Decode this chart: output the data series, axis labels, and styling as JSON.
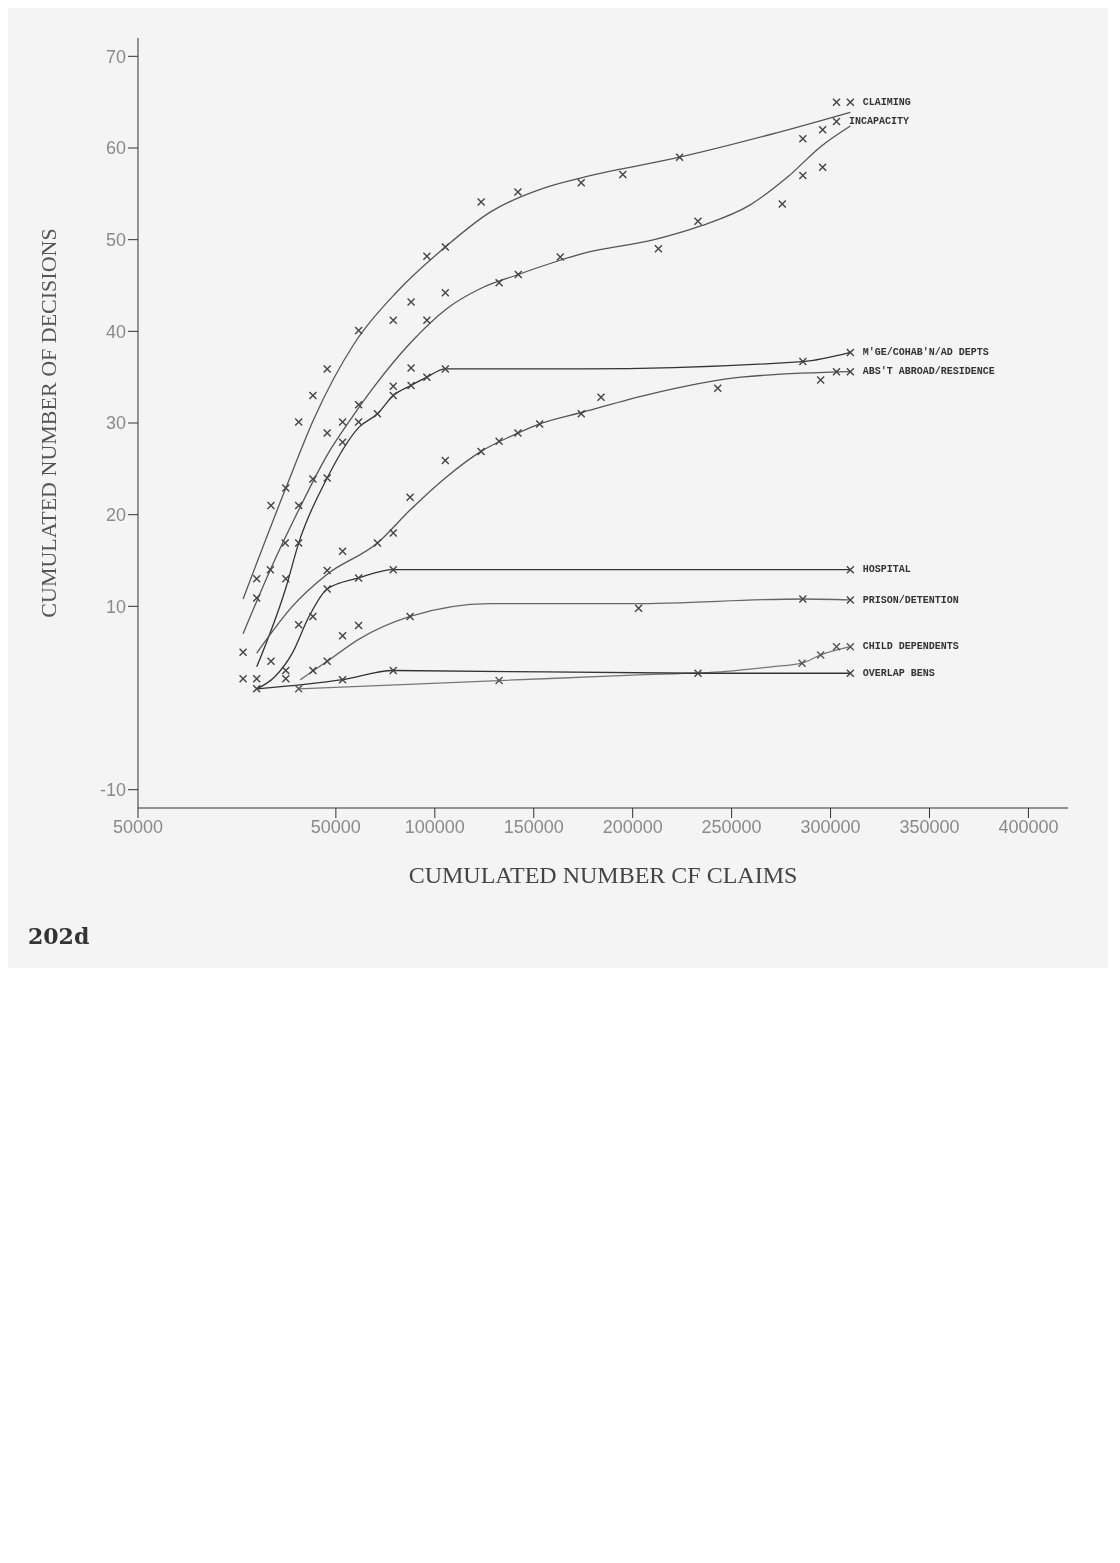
{
  "chart_data": {
    "type": "scatter",
    "xlabel": "CUMULATED NUMBER CF CLAIMS",
    "ylabel": "CUMULATED NUMBER OF DECISIONS",
    "annotations": [
      "202d"
    ],
    "xlim": [
      -50000,
      420000
    ],
    "xticks": [
      {
        "value": -50000,
        "label": "50000"
      },
      50000,
      100000,
      150000,
      200000,
      250000,
      300000,
      350000,
      400000
    ],
    "ylim": [
      -12,
      72
    ],
    "yticks": [
      -10,
      10,
      20,
      30,
      40,
      50,
      60,
      70
    ],
    "grid": false,
    "legend": false,
    "marker": "cross",
    "series": [
      {
        "name": "CLAIMING",
        "type": "scatter",
        "color": "#444444",
        "x": [
          310000,
          303000,
          296000,
          286000,
          223700,
          195000,
          174000,
          142000,
          123400,
          105300,
          96000,
          88000,
          79000,
          61500,
          45600,
          38400,
          31200,
          24700,
          17200,
          10000,
          10000
        ],
        "values": [
          65,
          65,
          62,
          61,
          59,
          57.1,
          56.2,
          55.2,
          54.1,
          49.2,
          48.2,
          43.2,
          41.2,
          40.1,
          35.9,
          33,
          30.1,
          22.9,
          21,
          13,
          10.9
        ]
      },
      {
        "type": "line",
        "marker": "none",
        "color": "#555555",
        "x": [
          3100,
          24700,
          39000,
          59400,
          81250,
          105300,
          128000,
          154700,
          175000,
          223700,
          270000,
          310000
        ],
        "values": [
          10.8,
          22.9,
          30.5,
          38.7,
          44.4,
          49.2,
          53,
          55.6,
          56.8,
          59,
          61.5,
          63.9
        ]
      },
      {
        "name": "INCAPACITY",
        "type": "scatter",
        "color": "#444444",
        "x": [
          303000,
          296000,
          286000,
          275600,
          233000,
          213000,
          163400,
          142200,
          132500,
          105300,
          96000,
          88000,
          79000,
          61500,
          53400,
          45600,
          38400,
          31200,
          24400,
          16900
        ],
        "values": [
          62.9,
          57.9,
          57,
          53.9,
          52,
          49,
          48.1,
          46.2,
          45.3,
          44.2,
          41.2,
          36,
          34,
          32,
          30.1,
          28.9,
          23.9,
          21,
          16.9,
          14
        ]
      },
      {
        "type": "line",
        "marker": "none",
        "color": "#555555",
        "x": [
          3100,
          16900,
          31200,
          45600,
          57800,
          68750,
          87500,
          106200,
          123400,
          142200,
          162500,
          175000,
          210900,
          234400,
          259400,
          278100,
          295300,
          310000
        ],
        "values": [
          7,
          14,
          20.5,
          26.5,
          30.5,
          33.8,
          38.7,
          42.5,
          44.7,
          46.2,
          47.7,
          48.5,
          50,
          51.5,
          53.8,
          56.8,
          60.2,
          62.4
        ]
      },
      {
        "name": "M'GE/COHAB'N/AD DEPTS",
        "type": "scatter",
        "color": "#444444",
        "x": [
          310000,
          286000,
          105300,
          96000,
          88000,
          79000,
          71000,
          61500,
          53400,
          45600,
          31200,
          24700
        ],
        "values": [
          37.7,
          36.7,
          35.9,
          35,
          34.1,
          33,
          31,
          30.1,
          27.9,
          24,
          16.9,
          13
        ]
      },
      {
        "type": "line",
        "marker": "none",
        "color": "#333333",
        "x": [
          10000,
          24700,
          31200,
          45600,
          61500,
          71000,
          79000,
          88000,
          96000,
          105300,
          175000,
          286000,
          310000
        ],
        "values": [
          3.4,
          12,
          16.9,
          24,
          29.5,
          31,
          33,
          34.1,
          35,
          35.9,
          35.9,
          36.7,
          37.7
        ]
      },
      {
        "name": "ABS'T ABROAD/RESIDENCE",
        "type": "scatter",
        "color": "#444444",
        "x": [
          310000,
          303000,
          295000,
          243000,
          184000,
          174000,
          153000,
          142000,
          132500,
          123400,
          105300,
          87500,
          79000,
          71000,
          53400,
          45600,
          3100
        ],
        "values": [
          35.6,
          35.6,
          34.7,
          33.8,
          32.8,
          31,
          29.9,
          28.9,
          28,
          26.9,
          25.9,
          21.9,
          18,
          16.9,
          16,
          13.9,
          5
        ]
      },
      {
        "type": "line",
        "marker": "none",
        "color": "#555555",
        "x": [
          10000,
          28000,
          45600,
          71000,
          87500,
          105300,
          123400,
          142000,
          153000,
          175000,
          207800,
          254700,
          310000
        ],
        "values": [
          4.9,
          10,
          13.5,
          16.9,
          20.5,
          24,
          26.9,
          28.9,
          29.9,
          31.2,
          33.1,
          35,
          35.6
        ]
      },
      {
        "name": "HOSPITAL",
        "type": "scatter",
        "color": "#444444",
        "x": [
          310000,
          79000,
          61500,
          45600,
          38400,
          31200,
          24700,
          10000
        ],
        "values": [
          14,
          14,
          13.1,
          11.9,
          8.9,
          8,
          3,
          1
        ]
      },
      {
        "type": "line",
        "marker": "none",
        "color": "#333333",
        "x": [
          10000,
          19000,
          28000,
          36000,
          45600,
          61500,
          79000,
          310000
        ],
        "values": [
          1,
          2.3,
          4.9,
          8.7,
          11.9,
          13.1,
          14,
          14
        ]
      },
      {
        "name": "PRISON/DETENTION",
        "type": "scatter",
        "color": "#444444",
        "x": [
          310000,
          286000,
          203000,
          87500,
          61500,
          53400,
          45600,
          38400,
          17200,
          10000,
          3100
        ],
        "values": [
          10.7,
          10.8,
          9.8,
          8.9,
          7.9,
          6.8,
          4,
          3,
          4,
          2.1,
          2.1
        ]
      },
      {
        "type": "line",
        "marker": "none",
        "color": "#666666",
        "x": [
          32000,
          45600,
          61500,
          87500,
          128000,
          200000,
          286000,
          310000
        ],
        "values": [
          2,
          4,
          6.4,
          8.9,
          10.3,
          10.3,
          10.8,
          10.7
        ]
      },
      {
        "name": "CHILD DEPENDENTS",
        "type": "scatter",
        "color": "#555555",
        "x": [
          310000,
          303000,
          295000,
          285600,
          132500,
          31200
        ],
        "values": [
          5.6,
          5.6,
          4.7,
          3.8,
          1.9,
          1
        ]
      },
      {
        "type": "line",
        "marker": "none",
        "color": "#777777",
        "x": [
          31200,
          132500,
          200000,
          247000,
          270000,
          285600,
          295000,
          310000
        ],
        "values": [
          1,
          1.9,
          2.5,
          2.9,
          3.4,
          3.8,
          4.7,
          5.6
        ]
      },
      {
        "name": "OVERLAP BENS",
        "type": "scatter",
        "color": "#444444",
        "x": [
          310000,
          233000,
          79000,
          53400,
          24700
        ],
        "values": [
          2.7,
          2.7,
          3,
          2,
          2.1
        ]
      },
      {
        "type": "line",
        "marker": "none",
        "color": "#333333",
        "x": [
          10000,
          53400,
          79000,
          233000,
          310000
        ],
        "values": [
          1,
          2,
          3,
          2.7,
          2.7
        ]
      }
    ]
  }
}
